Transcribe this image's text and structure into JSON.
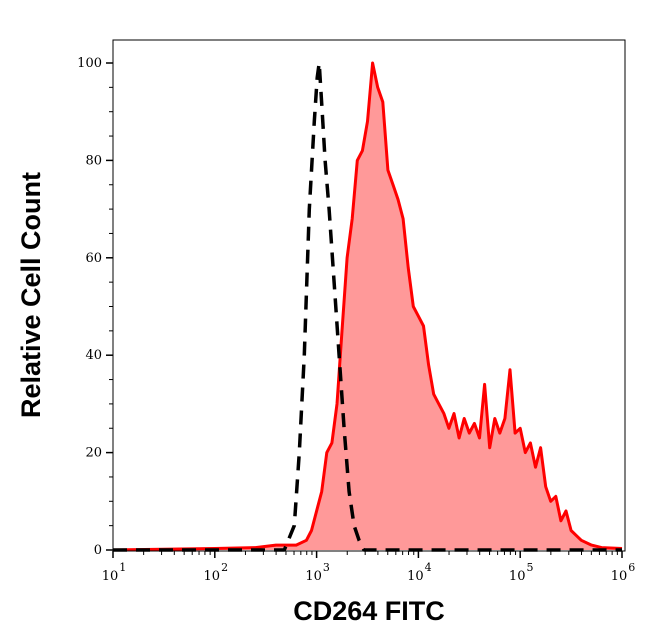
{
  "chart_data": {
    "type": "area",
    "title": "",
    "xlabel": "CD264 FITC",
    "ylabel": "Relative Cell Count",
    "x_scale": "log",
    "xlim": [
      10,
      1070000
    ],
    "ylim": [
      0,
      105
    ],
    "grid": false,
    "x_ticks": [
      {
        "base": "10",
        "exp": "1",
        "value": 10
      },
      {
        "base": "10",
        "exp": "2",
        "value": 100
      },
      {
        "base": "10",
        "exp": "3",
        "value": 1000
      },
      {
        "base": "10",
        "exp": "4",
        "value": 10000
      },
      {
        "base": "10",
        "exp": "5",
        "value": 100000
      },
      {
        "base": "10",
        "exp": "6",
        "value": 1000000
      }
    ],
    "y_ticks": [
      "0",
      "20",
      "40",
      "60",
      "80",
      "100"
    ],
    "series": [
      {
        "style": "filled-solid",
        "color": "#ff0000",
        "fill": "#ff9999",
        "x": [
          10,
          100,
          251,
          398,
          631,
          794,
          891,
          1000,
          1122,
          1259,
          1413,
          1585,
          1778,
          1995,
          2239,
          2512,
          2818,
          3162,
          3548,
          3981,
          4467,
          5012,
          5623,
          6310,
          7079,
          7943,
          8913,
          10000,
          11220,
          12589,
          14125,
          15849,
          17783,
          19953,
          22387,
          25119,
          28184,
          31623,
          35481,
          39811,
          44668,
          50119,
          56234,
          63096,
          70795,
          79433,
          89125,
          100000,
          112202,
          125893,
          141254,
          158489,
          177828,
          199526,
          223872,
          251189,
          281838,
          316228,
          354813,
          398107,
          501187,
          630957,
          1000000
        ],
        "y": [
          0,
          0.3,
          0.5,
          1,
          1,
          2,
          4,
          8,
          12,
          20,
          22,
          30,
          45,
          60,
          68,
          80,
          82,
          88,
          100,
          95,
          92,
          78,
          75,
          72,
          68,
          58,
          50,
          48,
          46,
          38,
          32,
          30,
          28,
          25,
          28,
          23,
          27,
          24,
          26,
          23,
          34,
          21,
          27,
          24,
          27,
          37,
          24,
          25,
          20,
          22,
          17,
          21,
          13,
          10,
          11,
          6,
          8,
          4,
          3,
          2,
          1,
          0.5,
          0.3
        ]
      },
      {
        "style": "dashed",
        "color": "#000000",
        "x": [
          10,
          482,
          604,
          676,
          757,
          847,
          949,
          1014,
          1060,
          1135,
          1213,
          1327,
          1486,
          1663,
          1862,
          2084,
          2333,
          2612,
          2924,
          1000000
        ],
        "y": [
          0,
          0,
          5,
          20,
          40,
          70,
          88,
          97,
          100,
          90,
          80,
          70,
          55,
          40,
          25,
          12,
          5,
          2,
          0,
          0
        ]
      }
    ]
  }
}
